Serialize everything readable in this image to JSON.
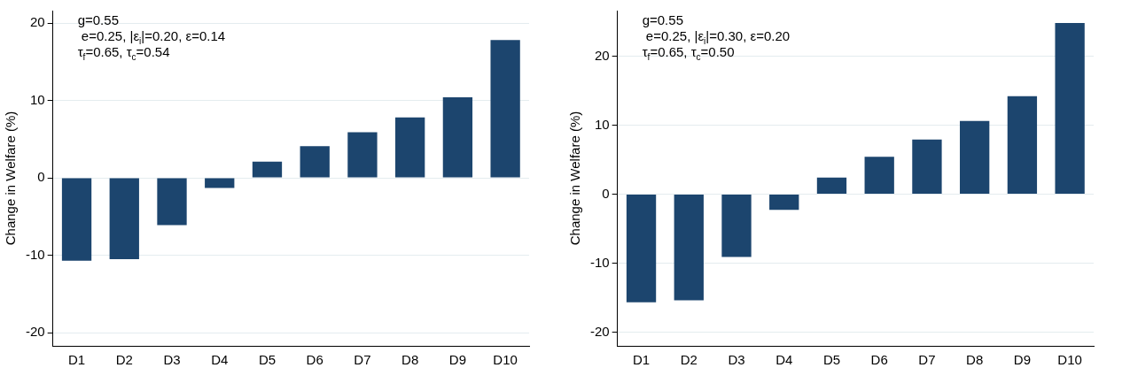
{
  "chart_data": [
    {
      "type": "bar",
      "categories": [
        "D1",
        "D2",
        "D3",
        "D4",
        "D5",
        "D6",
        "D7",
        "D8",
        "D9",
        "D10"
      ],
      "values": [
        -10.7,
        -10.5,
        -6.1,
        -1.3,
        2.1,
        4.1,
        5.9,
        7.8,
        10.4,
        17.8
      ],
      "color": "#1c456e",
      "ylabel": "Change in Welfare (%)",
      "ylim": [
        -21.7,
        21.6
      ],
      "yticks": [
        -20,
        -10,
        0,
        10,
        20
      ],
      "grid": "y",
      "legend": false,
      "annotations": [
        "g=0.55",
        " e=0.25, |ε$_{i}$|=0.20, ε=0.14",
        "τ$_{f}$=0.65, τ$_{c}$=0.54"
      ]
    },
    {
      "type": "bar",
      "categories": [
        "D1",
        "D2",
        "D3",
        "D4",
        "D5",
        "D6",
        "D7",
        "D8",
        "D9",
        "D10"
      ],
      "values": [
        -15.7,
        -15.4,
        -9.1,
        -2.3,
        2.4,
        5.4,
        7.9,
        10.6,
        14.2,
        24.8
      ],
      "color": "#1c456e",
      "ylabel": "Change in Welfare (%)",
      "ylim": [
        -22,
        26.6
      ],
      "yticks": [
        -20,
        -10,
        0,
        10,
        20
      ],
      "grid": "y",
      "legend": false,
      "annotations": [
        "g=0.55",
        " e=0.25, |ε$_{i}$|=0.30, ε=0.20",
        "τ$_{f}$=0.65, τ$_{c}$=0.50"
      ]
    }
  ]
}
